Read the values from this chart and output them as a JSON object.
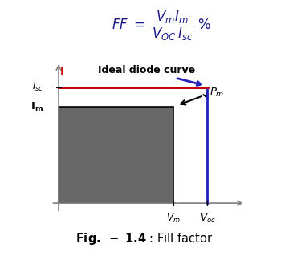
{
  "formula_color": "#1a1a8c",
  "curve_color_red": "#cc0000",
  "curve_color_blue": "#2222bb",
  "rect_color": "#686868",
  "rect_edge": "#000000",
  "axis_color": "#888888",
  "arrow_color": "#000000",
  "background": "#ffffff",
  "Isc": 0.82,
  "Im": 0.68,
  "Vm": 0.6,
  "Voc": 0.78,
  "xmax": 0.98,
  "ymax": 1.0,
  "caption_bold": "Fig. - 1.4",
  "caption_rest": " : Fill factor"
}
